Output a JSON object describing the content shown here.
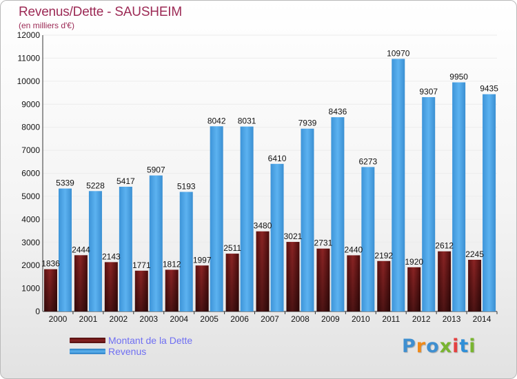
{
  "title": "Revenus/Dette - SAUSHEIM",
  "subtitle": "(en milliers d'€)",
  "logo": {
    "text": "Proxiti",
    "colors": [
      "#3f8fd0",
      "#f08a1a",
      "#3f8fd0",
      "#79b530",
      "#e44141",
      "#2f8fd8",
      "#79b530"
    ]
  },
  "chart_data": {
    "type": "bar",
    "categories": [
      "2000",
      "2001",
      "2002",
      "2003",
      "2004",
      "2005",
      "2006",
      "2007",
      "2008",
      "2009",
      "2010",
      "2011",
      "2012",
      "2013",
      "2014"
    ],
    "series": [
      {
        "name": "Montant de la Dette",
        "color": "#7a1c1c",
        "labels": [
          "1836",
          "2444",
          "2143",
          "1771",
          "1812",
          "1997",
          "2511",
          "3480",
          "3021",
          "2731",
          "2440",
          "2192",
          "1920",
          "2612",
          "2245"
        ],
        "values": [
          1836,
          2444,
          2143,
          1771,
          1812,
          1997,
          2511,
          3480,
          3021,
          2731,
          2440,
          2192,
          1920,
          2612,
          2245
        ]
      },
      {
        "name": "Revenus",
        "color": "#4aa3e8",
        "labels": [
          "5339",
          "5228",
          "5417",
          "5907",
          "5193",
          "8042",
          "8031",
          "6410",
          "7939",
          "8436",
          "6273",
          "10970",
          "9307",
          "9950",
          "9435"
        ],
        "values": [
          5339,
          5228,
          5417,
          5907,
          5193,
          8042,
          8031,
          6410,
          7939,
          8436,
          6273,
          10970,
          9307,
          9950,
          9435
        ]
      }
    ],
    "y_ticks": [
      "0",
      "1000",
      "2000",
      "3000",
      "4000",
      "5000",
      "6000",
      "7000",
      "8000",
      "9000",
      "10000",
      "11000",
      "12000"
    ],
    "ylim": [
      0,
      12000
    ],
    "grid": true,
    "legend": "bottom-left"
  }
}
